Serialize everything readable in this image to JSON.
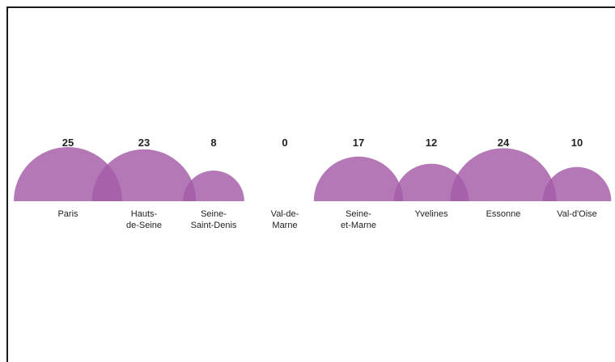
{
  "chart_data": {
    "type": "semicircle",
    "categories": [
      [
        "Paris"
      ],
      [
        "Hauts-",
        "de-Seine"
      ],
      [
        "Seine-",
        "Saint-Denis"
      ],
      [
        "Val-de-",
        "Marne"
      ],
      [
        "Seine-",
        "et-Marne"
      ],
      [
        "Yvelines"
      ],
      [
        "Essonne"
      ],
      [
        "Val-d'Oise"
      ]
    ],
    "values": [
      25,
      23,
      8,
      0,
      17,
      12,
      24,
      10
    ],
    "color": "#a45aa7",
    "title": "",
    "xlabel": "",
    "ylabel": ""
  }
}
